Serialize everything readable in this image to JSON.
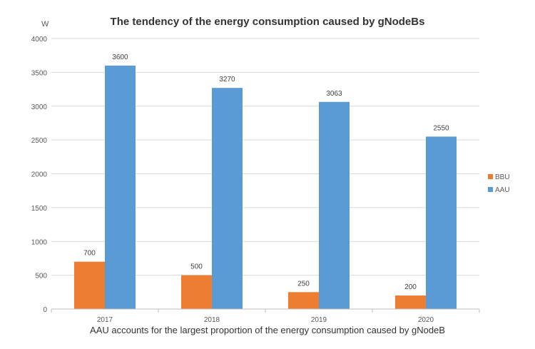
{
  "chart_data": {
    "type": "bar",
    "title": "The tendency of the energy consumption caused by gNodeBs",
    "xlabel": "",
    "ylabel": "W",
    "caption": "AAU accounts for the largest proportion of the energy consumption caused by gNodeB",
    "categories": [
      "2017",
      "2018",
      "2019",
      "2020"
    ],
    "series": [
      {
        "name": "BBU",
        "values": [
          700,
          500,
          250,
          200
        ],
        "color": "#ED7D31"
      },
      {
        "name": "AAU",
        "values": [
          3600,
          3270,
          3063,
          2550
        ],
        "color": "#5B9BD5"
      }
    ],
    "ylim": [
      0,
      4000
    ],
    "yticks": [
      0,
      500,
      1000,
      1500,
      2000,
      2500,
      3000,
      3500,
      4000
    ],
    "grid": true,
    "legend": "right"
  }
}
